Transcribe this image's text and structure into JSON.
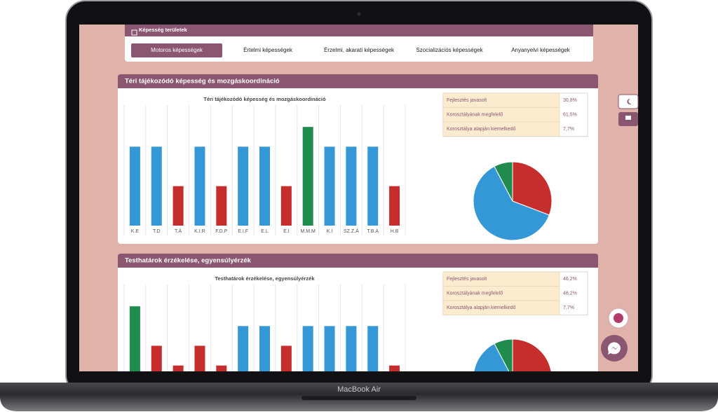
{
  "device": "MacBook Air",
  "header": {
    "title": "Képesség területek"
  },
  "tabs": [
    "Motoros képességek",
    "Értelmi képességek",
    "Érzelmi, akarati képességek",
    "Szocializációs képességek",
    "Anyanyelvi képességek"
  ],
  "panels": [
    {
      "title": "Téri tájékozódó képesség és mozgáskoordináció"
    },
    {
      "title": "Testhatárok érzékelése, egyensúlyérzék"
    }
  ],
  "chart_data": [
    {
      "type": "bar",
      "title": "Téri tájékozódó képesség és mozgáskoordináció",
      "categories": [
        "K.E",
        "T.D",
        "T.Á",
        "K.I.R",
        "F.D.P",
        "E.I.F",
        "E.L",
        "E.I",
        "M.M.M",
        "K.I",
        "SZ.Z.Á",
        "T.B.A",
        "H.B"
      ],
      "values": [
        4,
        4,
        2,
        4,
        2,
        4,
        4,
        2,
        5,
        4,
        4,
        4,
        2
      ],
      "colors": [
        "#3498d6",
        "#3498d6",
        "#c62d2d",
        "#3498d6",
        "#c62d2d",
        "#3498d6",
        "#3498d6",
        "#c62d2d",
        "#1f8c4d",
        "#3498d6",
        "#3498d6",
        "#3498d6",
        "#c62d2d"
      ],
      "ylim": [
        0,
        6
      ]
    },
    {
      "type": "pie",
      "categories": [
        "Fejlesztés javasolt",
        "Korosztályának megfelelő",
        "Korosztálya alapján kiemelkedő"
      ],
      "values": [
        30.8,
        61.5,
        7.7
      ],
      "value_labels": [
        "30,8%",
        "61,5%",
        "7,7%"
      ],
      "colors": [
        "#c62d2d",
        "#3498d6",
        "#1f8c4d"
      ]
    },
    {
      "type": "bar",
      "title": "Testhatárok érzékelése, egyensúlyérzék",
      "categories": [
        null,
        null,
        null,
        null,
        null,
        null,
        null,
        null,
        null,
        null,
        null,
        null,
        null
      ],
      "values": [
        5,
        3,
        2,
        3,
        2,
        4,
        4,
        3,
        4,
        4,
        4,
        4,
        2
      ],
      "colors": [
        "#1f8c4d",
        "#c62d2d",
        "#c62d2d",
        "#c62d2d",
        "#c62d2d",
        "#3498d6",
        "#3498d6",
        "#c62d2d",
        "#3498d6",
        "#3498d6",
        "#3498d6",
        "#3498d6",
        "#c62d2d"
      ],
      "ylim": [
        0,
        6
      ]
    },
    {
      "type": "pie",
      "categories": [
        "Fejlesztés javasolt",
        "Korosztályának megfelelő",
        "Korosztálya alapján kiemelkedő"
      ],
      "values": [
        46.2,
        46.2,
        7.7
      ],
      "value_labels": [
        "46,2%",
        "46,2%",
        "7,7%"
      ],
      "colors": [
        "#c62d2d",
        "#3498d6",
        "#1f8c4d"
      ]
    }
  ]
}
